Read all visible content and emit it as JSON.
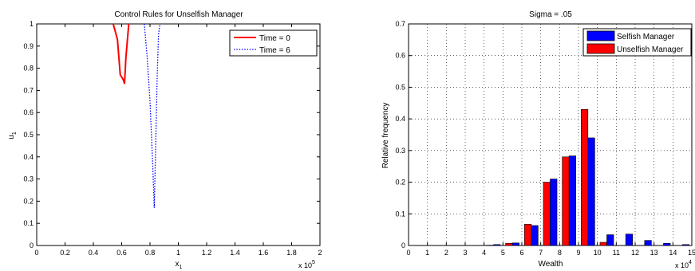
{
  "chart_data": [
    {
      "type": "line",
      "title": "Control Rules for Unselfish Manager",
      "xlabel": "x",
      "xlabel_sub": "1",
      "ylabel": "u",
      "ylabel_sub": "1",
      "xlim": [
        0,
        200000
      ],
      "ylim": [
        0,
        1
      ],
      "x_multiplier": "x 10",
      "x_multiplier_exp": "5",
      "xtick_labels": [
        "0",
        "0.2",
        "0.4",
        "0.6",
        "0.8",
        "1",
        "1.2",
        "1.4",
        "1.6",
        "1.8",
        "2"
      ],
      "ytick_labels": [
        "0",
        "0.1",
        "0.2",
        "0.3",
        "0.4",
        "0.5",
        "0.6",
        "0.7",
        "0.8",
        "0.9",
        "1"
      ],
      "grid": false,
      "legend_position": "top-right",
      "series": [
        {
          "name": "Time = 0",
          "color": "#ff0000",
          "style": "solid",
          "x": [
            54000,
            57000,
            59000,
            61000,
            62000,
            63000,
            65000
          ],
          "y": [
            1.0,
            0.93,
            0.77,
            0.75,
            0.73,
            0.85,
            1.0
          ]
        },
        {
          "name": "Time = 6",
          "color": "#0000ff",
          "style": "dotted",
          "x": [
            76000,
            78000,
            80000,
            81000,
            82000,
            83000,
            84000,
            85000,
            86000,
            87000
          ],
          "y": [
            1.0,
            0.85,
            0.65,
            0.5,
            0.35,
            0.17,
            0.45,
            0.75,
            0.95,
            1.0
          ]
        }
      ]
    },
    {
      "type": "bar",
      "title": "Sigma = .05",
      "xlabel": "Wealth",
      "ylabel": "Relative frequency",
      "xlim": [
        0,
        15
      ],
      "ylim": [
        0,
        0.7
      ],
      "x_multiplier": "x 10",
      "x_multiplier_exp": "4",
      "xtick_labels": [
        "0",
        "1",
        "2",
        "3",
        "4",
        "5",
        "6",
        "7",
        "8",
        "9",
        "10",
        "11",
        "12",
        "13",
        "14",
        "15"
      ],
      "ytick_labels": [
        "0",
        "0.1",
        "0.2",
        "0.3",
        "0.4",
        "0.5",
        "0.6",
        "0.7"
      ],
      "grid": true,
      "legend_position": "top-right",
      "categories": [
        4.5,
        5.5,
        6.5,
        7.5,
        8.5,
        9.5,
        10.5,
        11.5,
        12.5,
        13.5,
        14.5
      ],
      "series": [
        {
          "name": "Selfish Manager",
          "color": "#0000ff",
          "values": [
            0.003,
            0.008,
            0.063,
            0.21,
            0.283,
            0.34,
            0.034,
            0.036,
            0.016,
            0.007,
            0.003
          ]
        },
        {
          "name": "Unselfish Manager",
          "color": "#ff0000",
          "values": [
            0.001,
            0.007,
            0.067,
            0.2,
            0.28,
            0.43,
            0.01,
            0.0,
            0.0,
            0.0,
            0.0
          ]
        }
      ]
    }
  ]
}
